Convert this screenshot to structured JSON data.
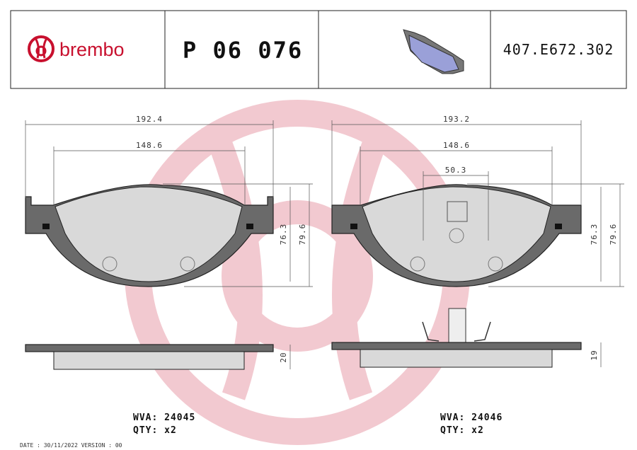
{
  "header": {
    "brand": "brembo",
    "part_number": "P 06 076",
    "reference": "407.E672.302"
  },
  "left": {
    "dimensions": {
      "overall_width": "192.4",
      "inner_width": "148.6",
      "inner_height": "76.3",
      "outer_height": "79.6",
      "thickness": "20"
    },
    "wva": "WVA: 24045",
    "qty": "QTY: x2"
  },
  "right": {
    "dimensions": {
      "overall_width": "193.2",
      "inner_width": "148.6",
      "sensor_offset": "50.3",
      "inner_height": "76.3",
      "outer_height": "79.6",
      "thickness": "19"
    },
    "wva": "WVA: 24046",
    "qty": "QTY: x2"
  },
  "footer": "DATE : 30/11/2022 VERSION : 00"
}
